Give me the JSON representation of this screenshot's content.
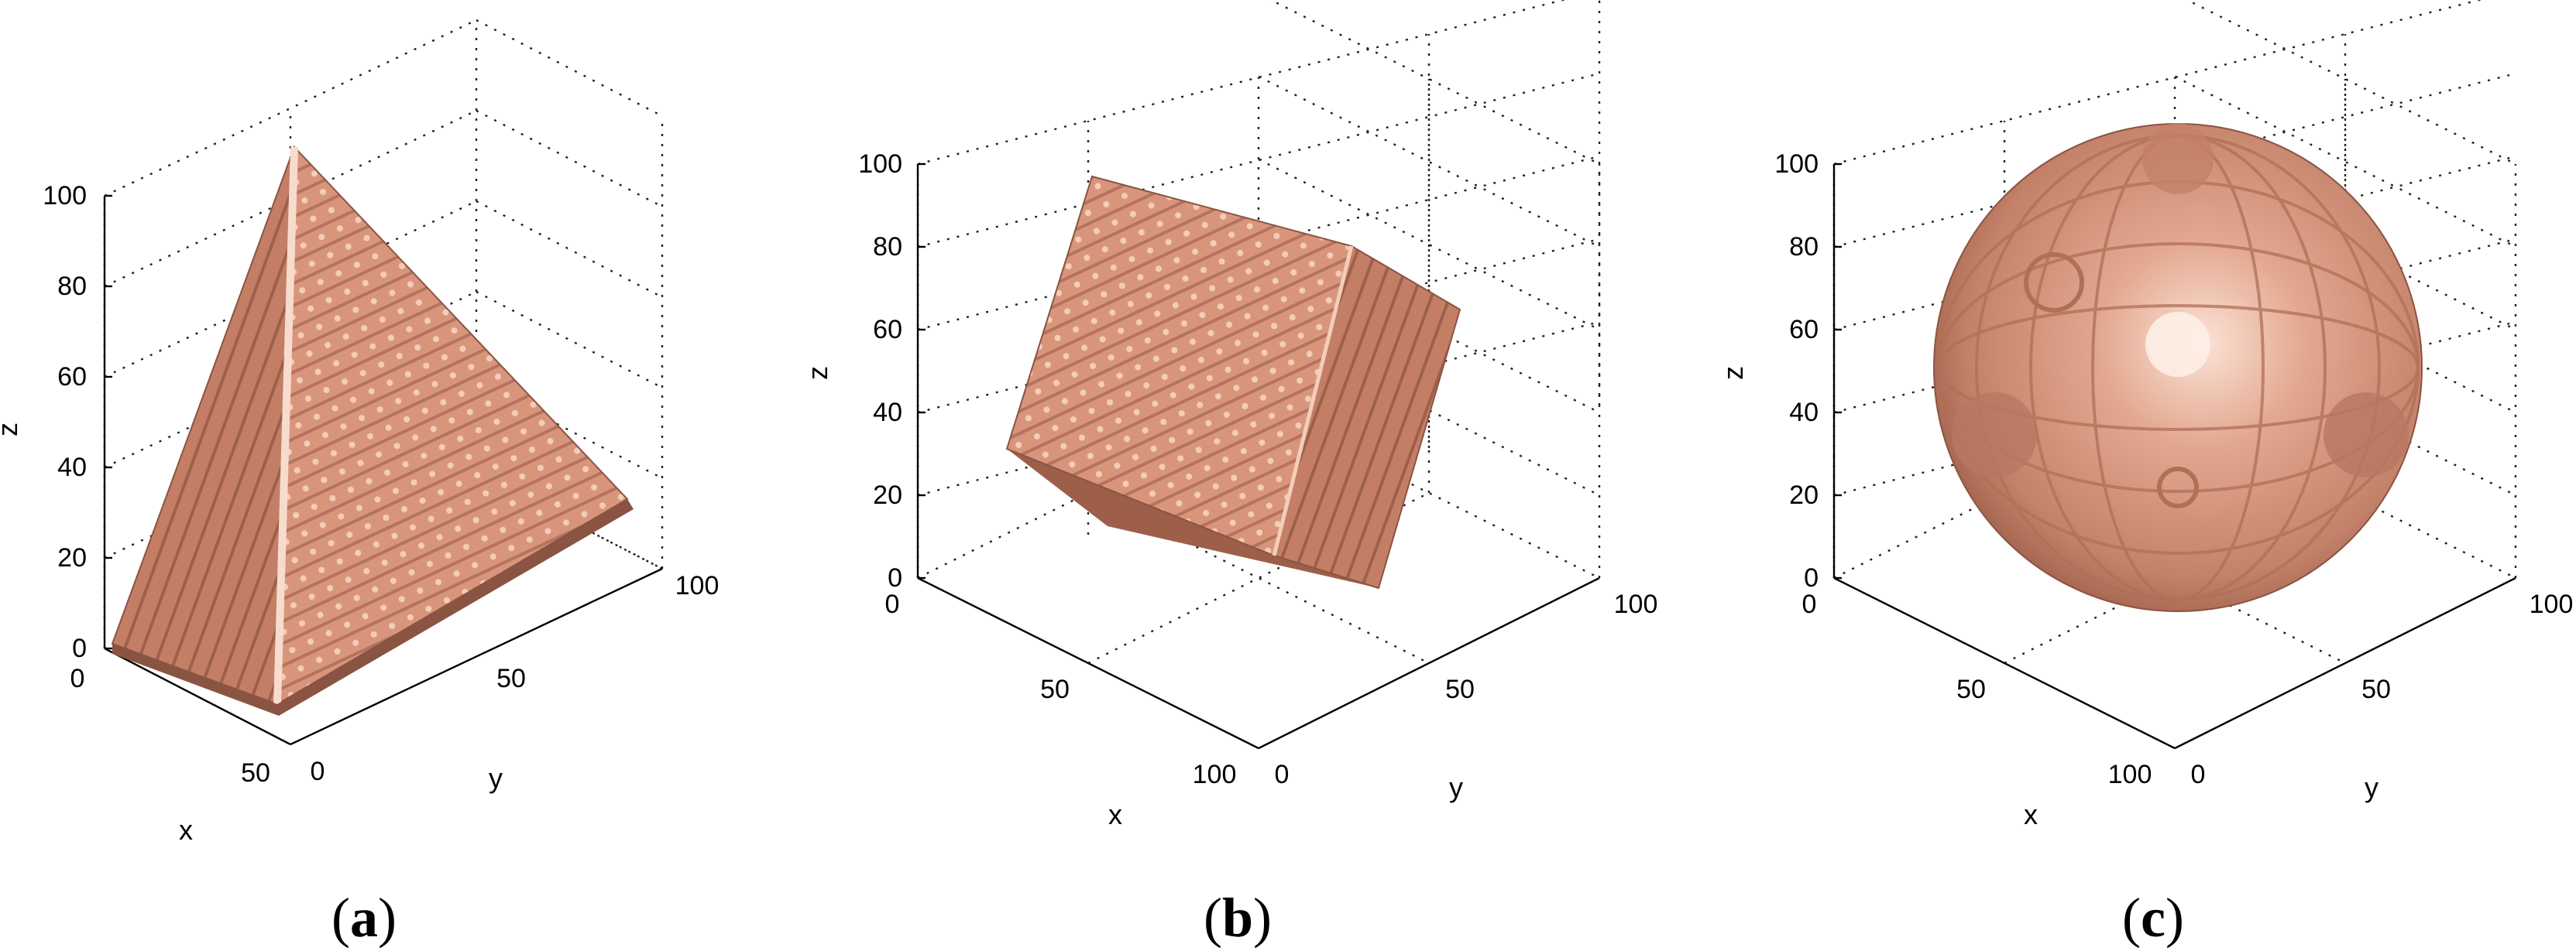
{
  "colors": {
    "solid": "#d9957c",
    "solid_dark": "#a8674f",
    "solid_shadow": "#8a5442",
    "solid_light": "#f1c8b4",
    "grid": "#222222",
    "axis": "#000000"
  },
  "panels": [
    {
      "caption_open": "(",
      "caption_letter": "a",
      "caption_close": ")",
      "shape": "pyramid",
      "z_ticks": [
        "0",
        "20",
        "40",
        "60",
        "80",
        "100"
      ],
      "x_ticks": [
        "0",
        "50"
      ],
      "y_ticks": [
        "0",
        "50",
        "100"
      ],
      "x_label": "x",
      "y_label": "y",
      "z_label": "z"
    },
    {
      "caption_open": "(",
      "caption_letter": "b",
      "caption_close": ")",
      "shape": "cube",
      "z_ticks": [
        "0",
        "20",
        "40",
        "60",
        "80",
        "100"
      ],
      "x_ticks": [
        "0",
        "50",
        "100"
      ],
      "y_ticks": [
        "0",
        "50",
        "100"
      ],
      "x_label": "x",
      "y_label": "y",
      "z_label": "z"
    },
    {
      "caption_open": "(",
      "caption_letter": "c",
      "caption_close": ")",
      "shape": "sphere",
      "z_ticks": [
        "0",
        "20",
        "40",
        "60",
        "80",
        "100"
      ],
      "x_ticks": [
        "0",
        "50",
        "100"
      ],
      "y_ticks": [
        "0",
        "50",
        "100"
      ],
      "x_label": "x",
      "y_label": "y",
      "z_label": "z"
    }
  ]
}
